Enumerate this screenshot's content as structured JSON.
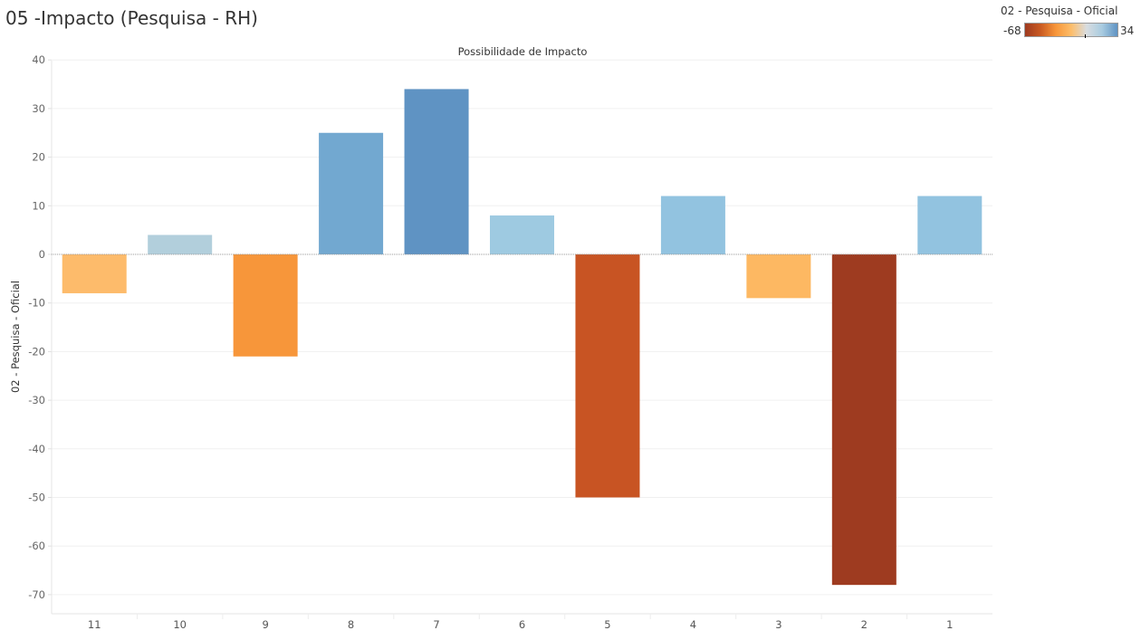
{
  "page": {
    "title": "05 -Impacto (Pesquisa - RH)"
  },
  "legend": {
    "title": "02 - Pesquisa - Oficial",
    "min_label": "-68",
    "max_label": "34",
    "min": -68,
    "max": 34,
    "gradient_stops": [
      "#9e3a1f",
      "#c95a22",
      "#f7963a",
      "#fdbd6a",
      "#d8dde0",
      "#a8cbe0",
      "#5f93c3"
    ]
  },
  "chart_data": {
    "type": "bar",
    "title": "Possibilidade de Impacto",
    "xlabel": "",
    "ylabel": "02 - Pesquisa - Oficial",
    "categories": [
      "11",
      "10",
      "9",
      "8",
      "7",
      "6",
      "5",
      "4",
      "3",
      "2",
      "1"
    ],
    "values": [
      -8,
      4,
      -21,
      25,
      34,
      8,
      -50,
      12,
      -9,
      -68,
      12
    ],
    "colors": [
      "#fdbb6b",
      "#b2cfdc",
      "#f7963a",
      "#72a8d0",
      "#5f93c3",
      "#9ecae1",
      "#c85423",
      "#92c3e0",
      "#fdb862",
      "#9e3b20",
      "#92c3e0"
    ],
    "ylim": [
      -72,
      40
    ],
    "yticks": [
      40,
      30,
      20,
      10,
      0,
      -10,
      -20,
      -30,
      -40,
      -50,
      -60,
      -70
    ],
    "grid": true,
    "legend_position": "top-right"
  }
}
